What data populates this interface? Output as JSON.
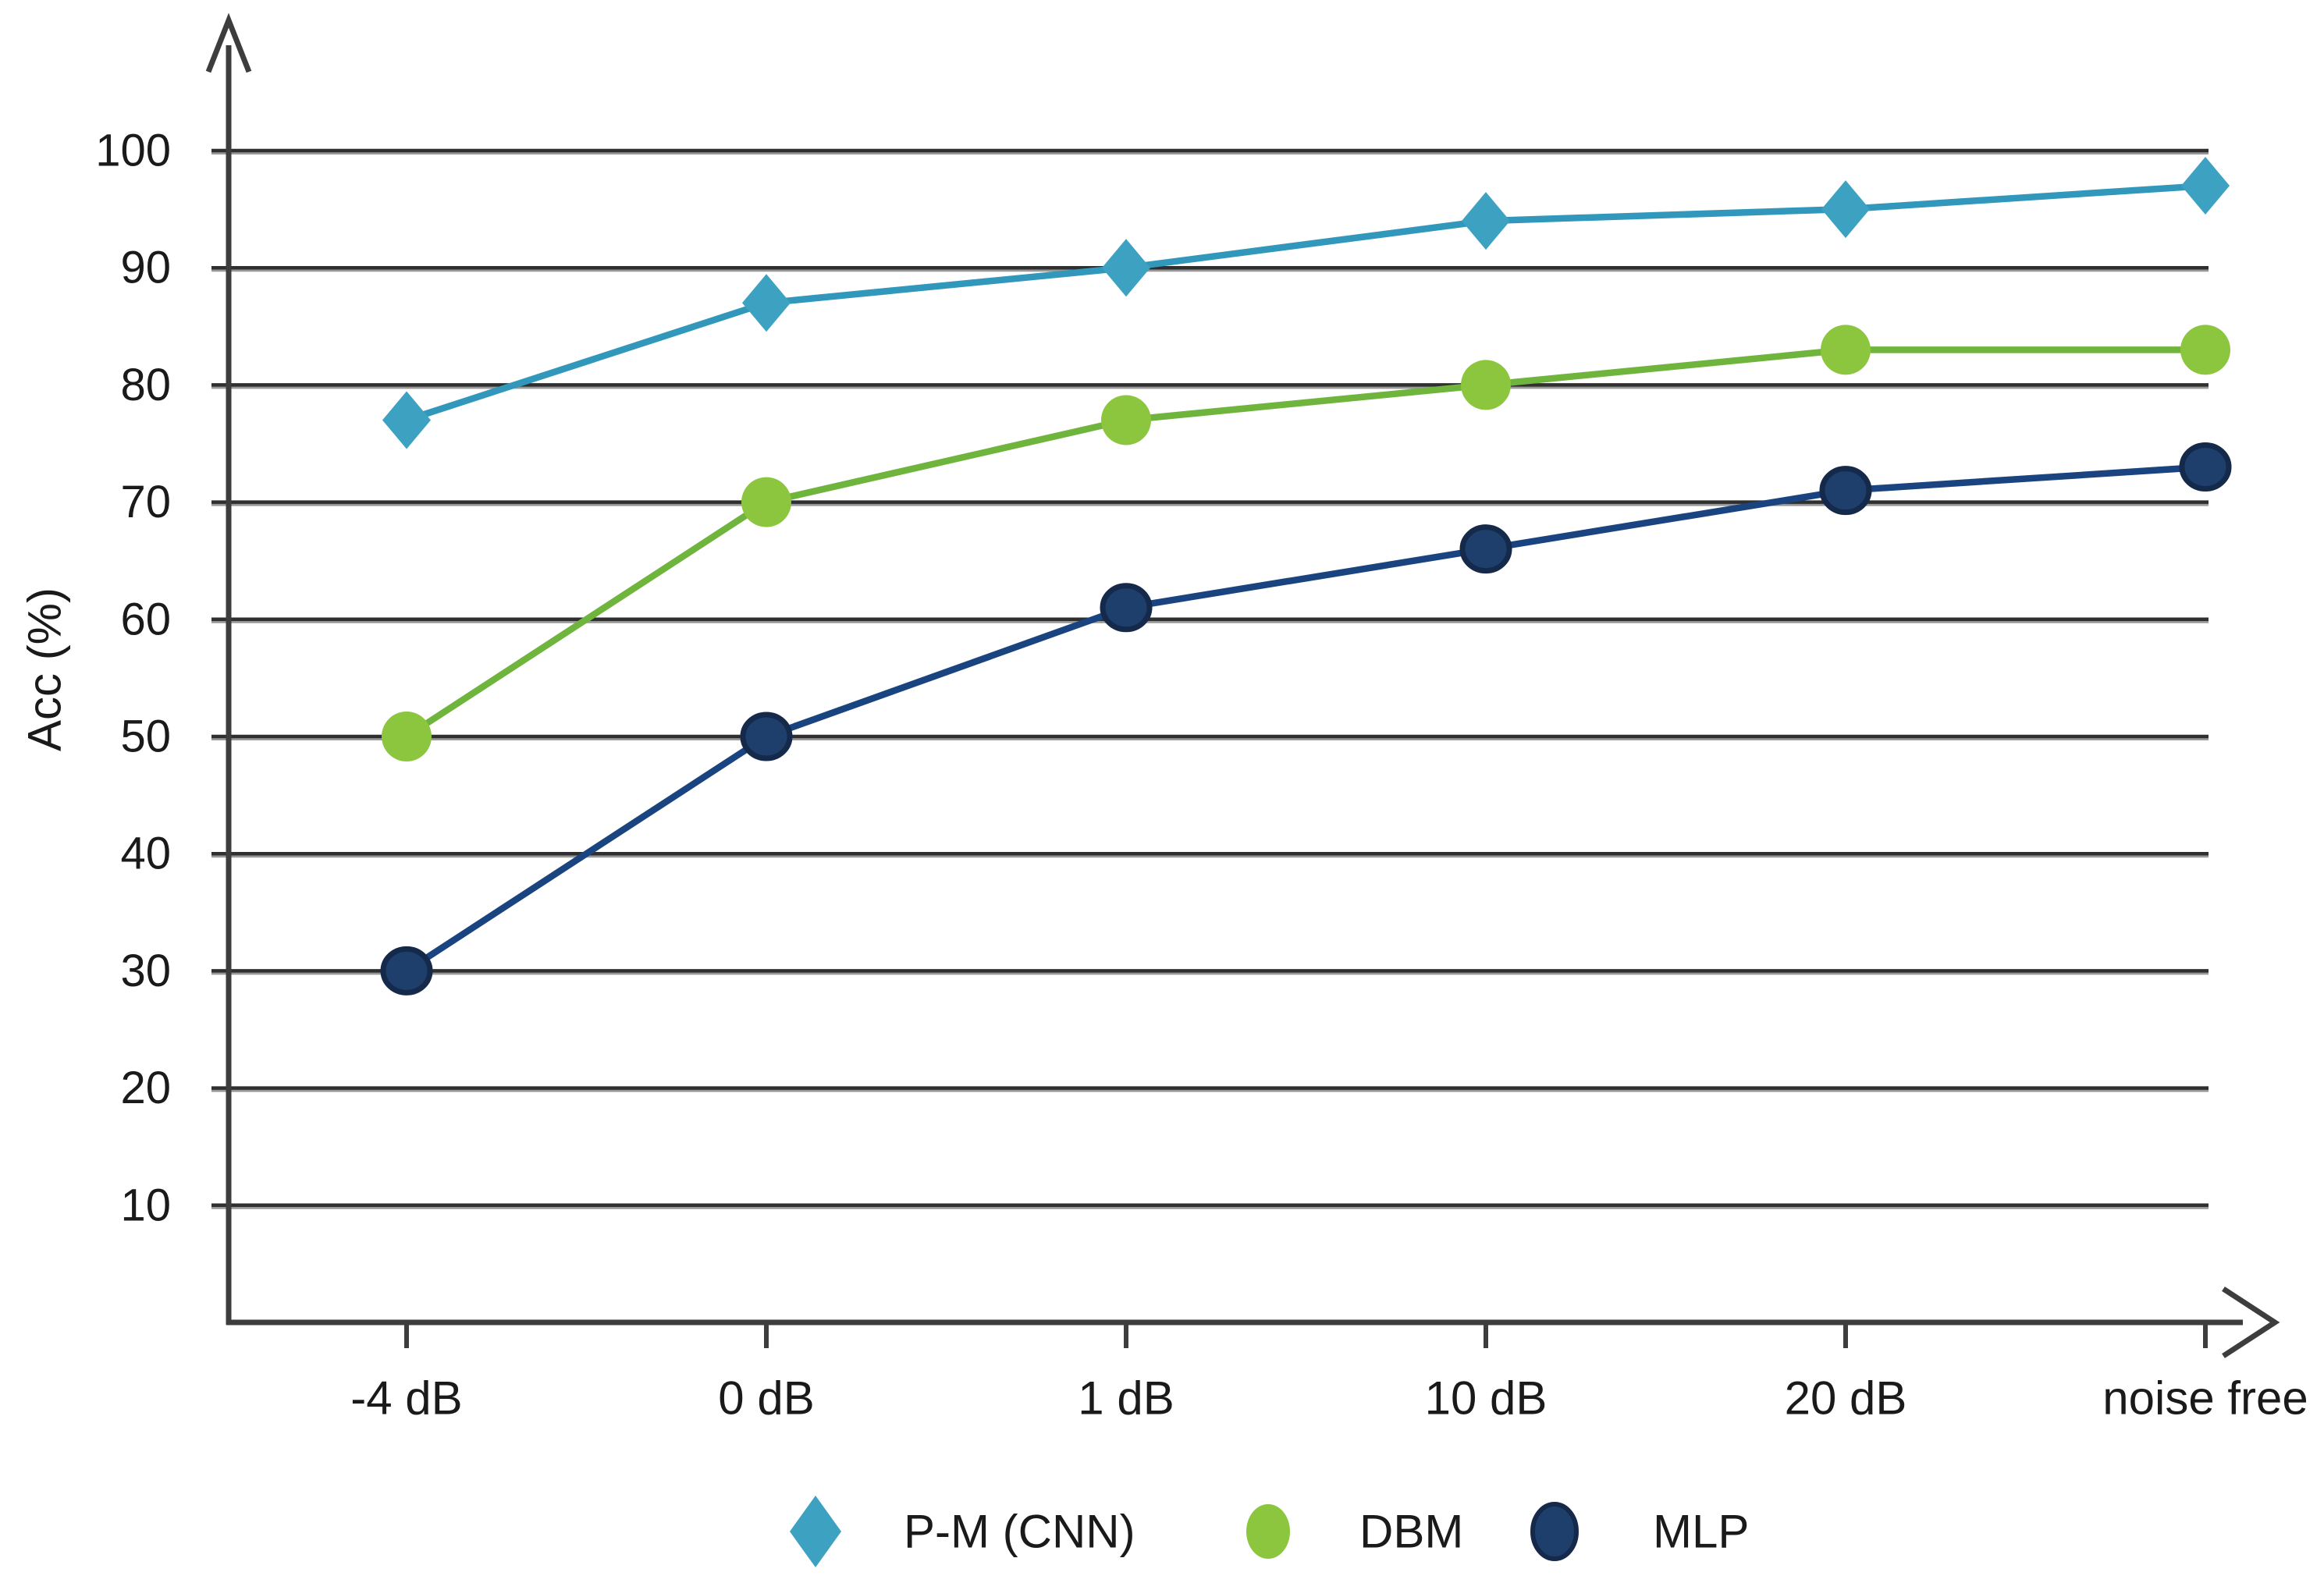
{
  "figure": {
    "background": "#ffffff",
    "text_color": "#1a1a1a",
    "axis_color": "#3d3d3d",
    "gridline_dark": "#2f2f2f",
    "gridline_light": "#989898"
  },
  "chart_data": {
    "type": "line",
    "title": "",
    "xlabel": "",
    "ylabel": "Acc (%)",
    "categories": [
      "-4 dB",
      "0 dB",
      "1 dB",
      "10 dB",
      "20 dB",
      "noise free"
    ],
    "y_ticks": [
      100,
      90,
      80,
      70,
      60,
      50,
      40,
      30,
      20,
      10
    ],
    "ylim": [
      0,
      107
    ],
    "grid": "horizontal",
    "legend_position": "bottom-center",
    "series": [
      {
        "name": "P-M (CNN)",
        "marker": "diamond",
        "marker_color": "#3da2c2",
        "line_color": "#3198bc",
        "values": [
          77,
          87,
          90,
          94,
          95,
          97
        ]
      },
      {
        "name": "DBM",
        "marker": "circle",
        "marker_color": "#8cc63f",
        "line_color": "#6fb53d",
        "values": [
          50,
          70,
          77,
          80,
          83,
          83
        ]
      },
      {
        "name": "MLP",
        "marker": "circle",
        "marker_color": "#1e3e6c",
        "marker_stroke": "#15294b",
        "line_color": "#1a4480",
        "values": [
          30,
          50,
          61,
          66,
          71,
          73
        ]
      }
    ]
  }
}
